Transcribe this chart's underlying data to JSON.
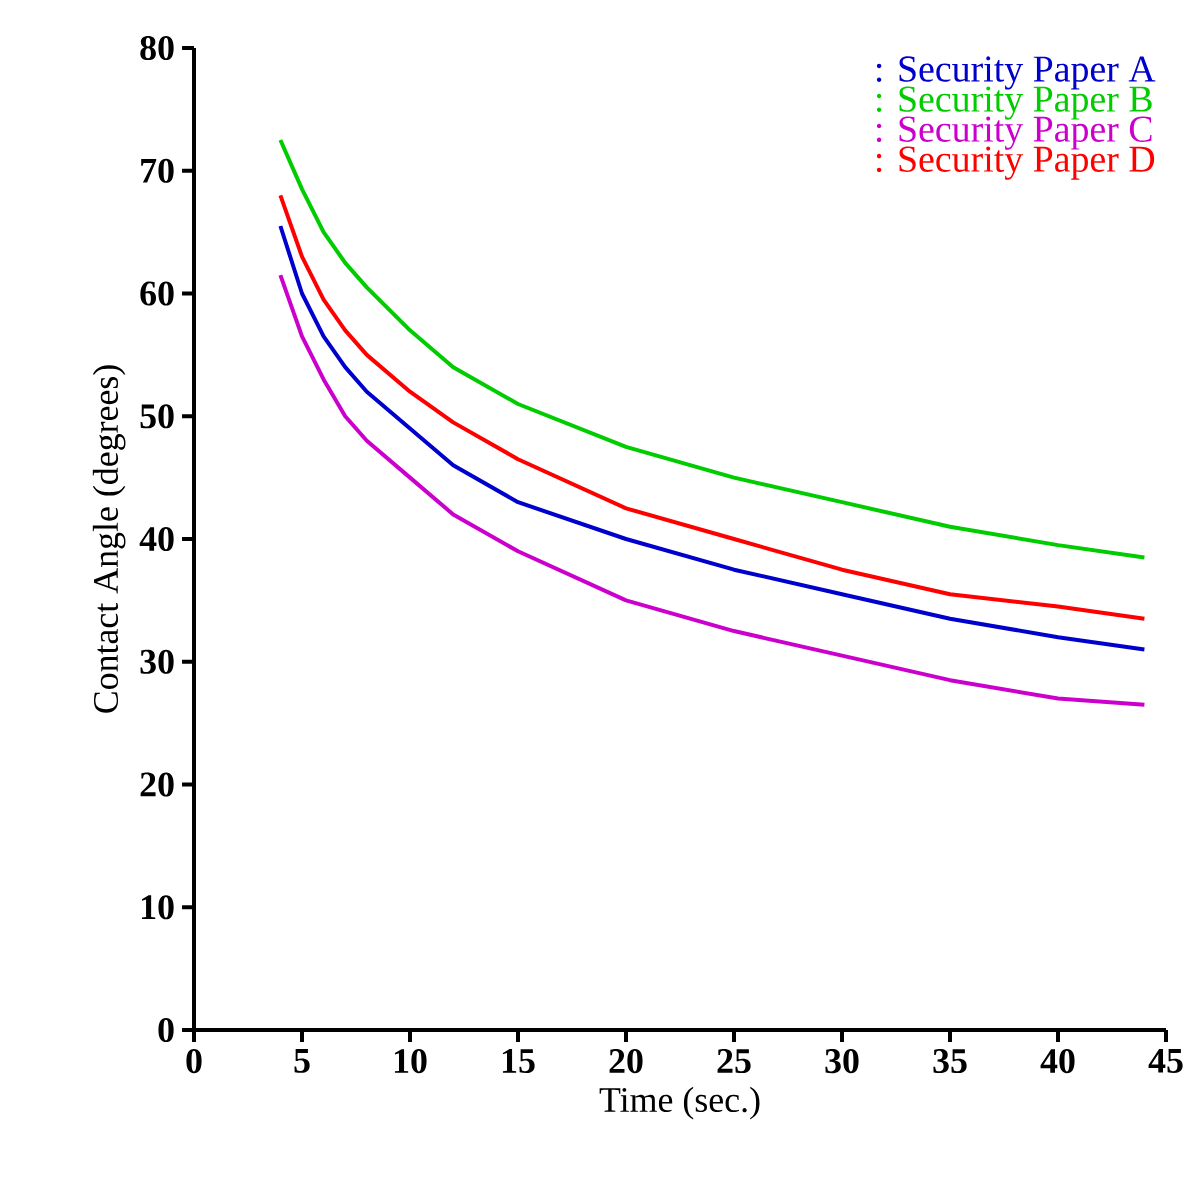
{
  "chart_data": {
    "type": "line",
    "xlabel": "Time  (sec.)",
    "ylabel": "Contact Angle (degrees)",
    "x": [
      4,
      5,
      6,
      7,
      8,
      10,
      12,
      15,
      20,
      25,
      30,
      35,
      40,
      44
    ],
    "series": [
      {
        "name": ": Security Paper A",
        "color": "#0000cc",
        "values": [
          65.5,
          60,
          56.5,
          54,
          52,
          49,
          46,
          43,
          40,
          37.5,
          35.5,
          33.5,
          32,
          31
        ]
      },
      {
        "name": ": Security Paper B",
        "color": "#00cc00",
        "values": [
          72.5,
          68.5,
          65,
          62.5,
          60.5,
          57,
          54,
          51,
          47.5,
          45,
          43,
          41,
          39.5,
          38.5
        ]
      },
      {
        "name": ": Security Paper C",
        "color": "#cc00cc",
        "values": [
          61.5,
          56.5,
          53,
          50,
          48,
          45,
          42,
          39,
          35,
          32.5,
          30.5,
          28.5,
          27,
          26.5
        ]
      },
      {
        "name": ": Security Paper D",
        "color": "#ff0000",
        "values": [
          68,
          63,
          59.5,
          57,
          55,
          52,
          49.5,
          46.5,
          42.5,
          40,
          37.5,
          35.5,
          34.5,
          33.5
        ]
      }
    ],
    "xlim": [
      0,
      45
    ],
    "xticks": [
      0,
      5,
      10,
      15,
      20,
      25,
      30,
      35,
      40,
      45
    ],
    "ylim": [
      0,
      80
    ],
    "yticks": [
      0,
      10,
      20,
      30,
      40,
      50,
      60,
      70,
      80
    ],
    "legend": "top right",
    "grid": false,
    "marker": "none",
    "line_style": "solid"
  }
}
